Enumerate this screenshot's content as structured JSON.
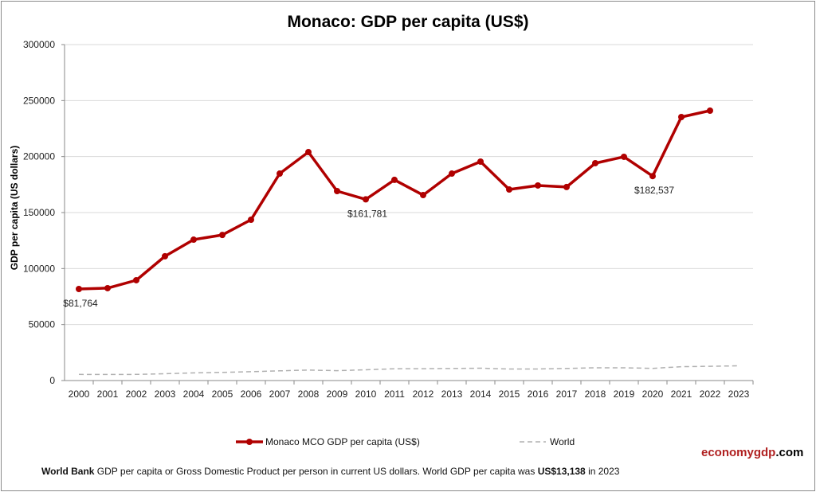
{
  "chart_data": {
    "type": "line",
    "title": "Monaco: GDP per capita (US$)",
    "xlabel": "",
    "ylabel": "GDP per capita (US dollars)",
    "ylim": [
      0,
      300000
    ],
    "yticks": [
      "0",
      "50000",
      "100000",
      "150000",
      "200000",
      "250000",
      "300000"
    ],
    "grid": true,
    "legend_position": "bottom",
    "categories": [
      "2000",
      "2001",
      "2002",
      "2003",
      "2004",
      "2005",
      "2006",
      "2007",
      "2008",
      "2009",
      "2010",
      "2011",
      "2012",
      "2013",
      "2014",
      "2015",
      "2016",
      "2017",
      "2018",
      "2019",
      "2020",
      "2021",
      "2022",
      "2023"
    ],
    "series": [
      {
        "name": "Monaco MCO GDP per capita (US$)",
        "color": "#b00000",
        "style": "solid-markers",
        "values": [
          81764,
          82500,
          89600,
          111000,
          125800,
          130000,
          143600,
          184800,
          204000,
          169200,
          161781,
          179200,
          165600,
          184800,
          195500,
          170600,
          174200,
          172800,
          194100,
          199800,
          182537,
          235300,
          241000,
          null
        ]
      },
      {
        "name": "World",
        "color": "#b0b0b0",
        "style": "dashed",
        "values": [
          5500,
          5400,
          5500,
          6100,
          6800,
          7300,
          7900,
          8700,
          9400,
          8800,
          9600,
          10500,
          10600,
          10800,
          11000,
          10300,
          10300,
          10800,
          11400,
          11400,
          10900,
          12400,
          12700,
          13138
        ]
      }
    ],
    "annotations": [
      {
        "category": "2000",
        "text": "$81,764"
      },
      {
        "category": "2010",
        "text": "$161,781"
      },
      {
        "category": "2020",
        "text": "$182,537"
      }
    ]
  },
  "footer": {
    "source_bold": "World Bank",
    "text": " GDP per capita or Gross Domestic Product per person  in current US dollars.   World GDP per capita was ",
    "value_bold": "US$13,138",
    "year_text": "  in 2023"
  },
  "brand": {
    "part1": "economygdp",
    "part2": ".com",
    "color1": "#b02020",
    "color2": "#000000"
  }
}
